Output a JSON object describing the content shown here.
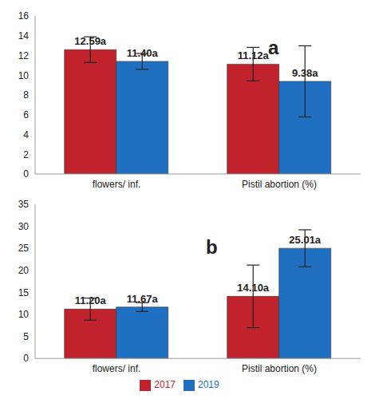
{
  "chart_data": [
    {
      "type": "bar",
      "title": "a",
      "categories": [
        "flowers/ inf.",
        "Pistil abortion (%)"
      ],
      "series": [
        {
          "name": "2017",
          "color": "#c0232b",
          "values": [
            12.59,
            11.12
          ],
          "errors": [
            1.3,
            1.7
          ],
          "value_labels": [
            "12.59a",
            "11.12a"
          ]
        },
        {
          "name": "2019",
          "color": "#1f70c1",
          "values": [
            11.4,
            9.38
          ],
          "errors": [
            0.8,
            3.6
          ],
          "value_labels": [
            "11.40a",
            "9.38a"
          ]
        }
      ],
      "ylim": [
        0,
        16
      ],
      "yticks": [
        0,
        2,
        4,
        6,
        8,
        10,
        12,
        14,
        16
      ],
      "grid": false,
      "data_labels": true
    },
    {
      "type": "bar",
      "title": "b",
      "categories": [
        "flowers/ inf.",
        "Pistil abortion (%)"
      ],
      "series": [
        {
          "name": "2017",
          "color": "#c0232b",
          "values": [
            11.2,
            14.1
          ],
          "errors": [
            2.5,
            7.1
          ],
          "value_labels": [
            "11.20a",
            "14.10a"
          ]
        },
        {
          "name": "2019",
          "color": "#1f70c1",
          "values": [
            11.67,
            25.01
          ],
          "errors": [
            1.0,
            4.2
          ],
          "value_labels": [
            "11.67a",
            "25.01a"
          ]
        }
      ],
      "ylim": [
        0,
        35
      ],
      "yticks": [
        0,
        5,
        10,
        15,
        20,
        25,
        30,
        35
      ],
      "grid": false,
      "data_labels": true,
      "legend": "bottom"
    }
  ]
}
